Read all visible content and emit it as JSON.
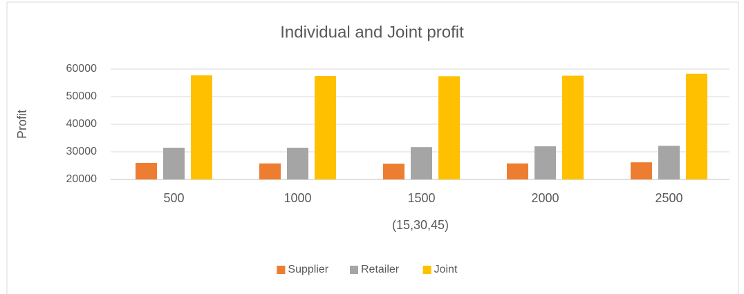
{
  "chart_data": {
    "type": "bar",
    "title": "Individual and Joint profit",
    "x_label": "(15,30,45)",
    "y_label": "Profit",
    "categories": [
      "500",
      "1000",
      "1500",
      "2000",
      "2500"
    ],
    "series": [
      {
        "name": "Supplier",
        "color": "#ed7d31",
        "values": [
          26000,
          25800,
          25700,
          25800,
          26200
        ]
      },
      {
        "name": "Retailer",
        "color": "#a5a5a5",
        "values": [
          31500,
          31500,
          31700,
          32000,
          32200
        ]
      },
      {
        "name": "Joint",
        "color": "#ffc000",
        "values": [
          57700,
          57500,
          57400,
          57600,
          58300
        ]
      }
    ],
    "ylim": [
      20000,
      60000
    ],
    "yticks": [
      20000,
      30000,
      40000,
      50000,
      60000
    ],
    "grid": true,
    "legend": "bottom"
  }
}
